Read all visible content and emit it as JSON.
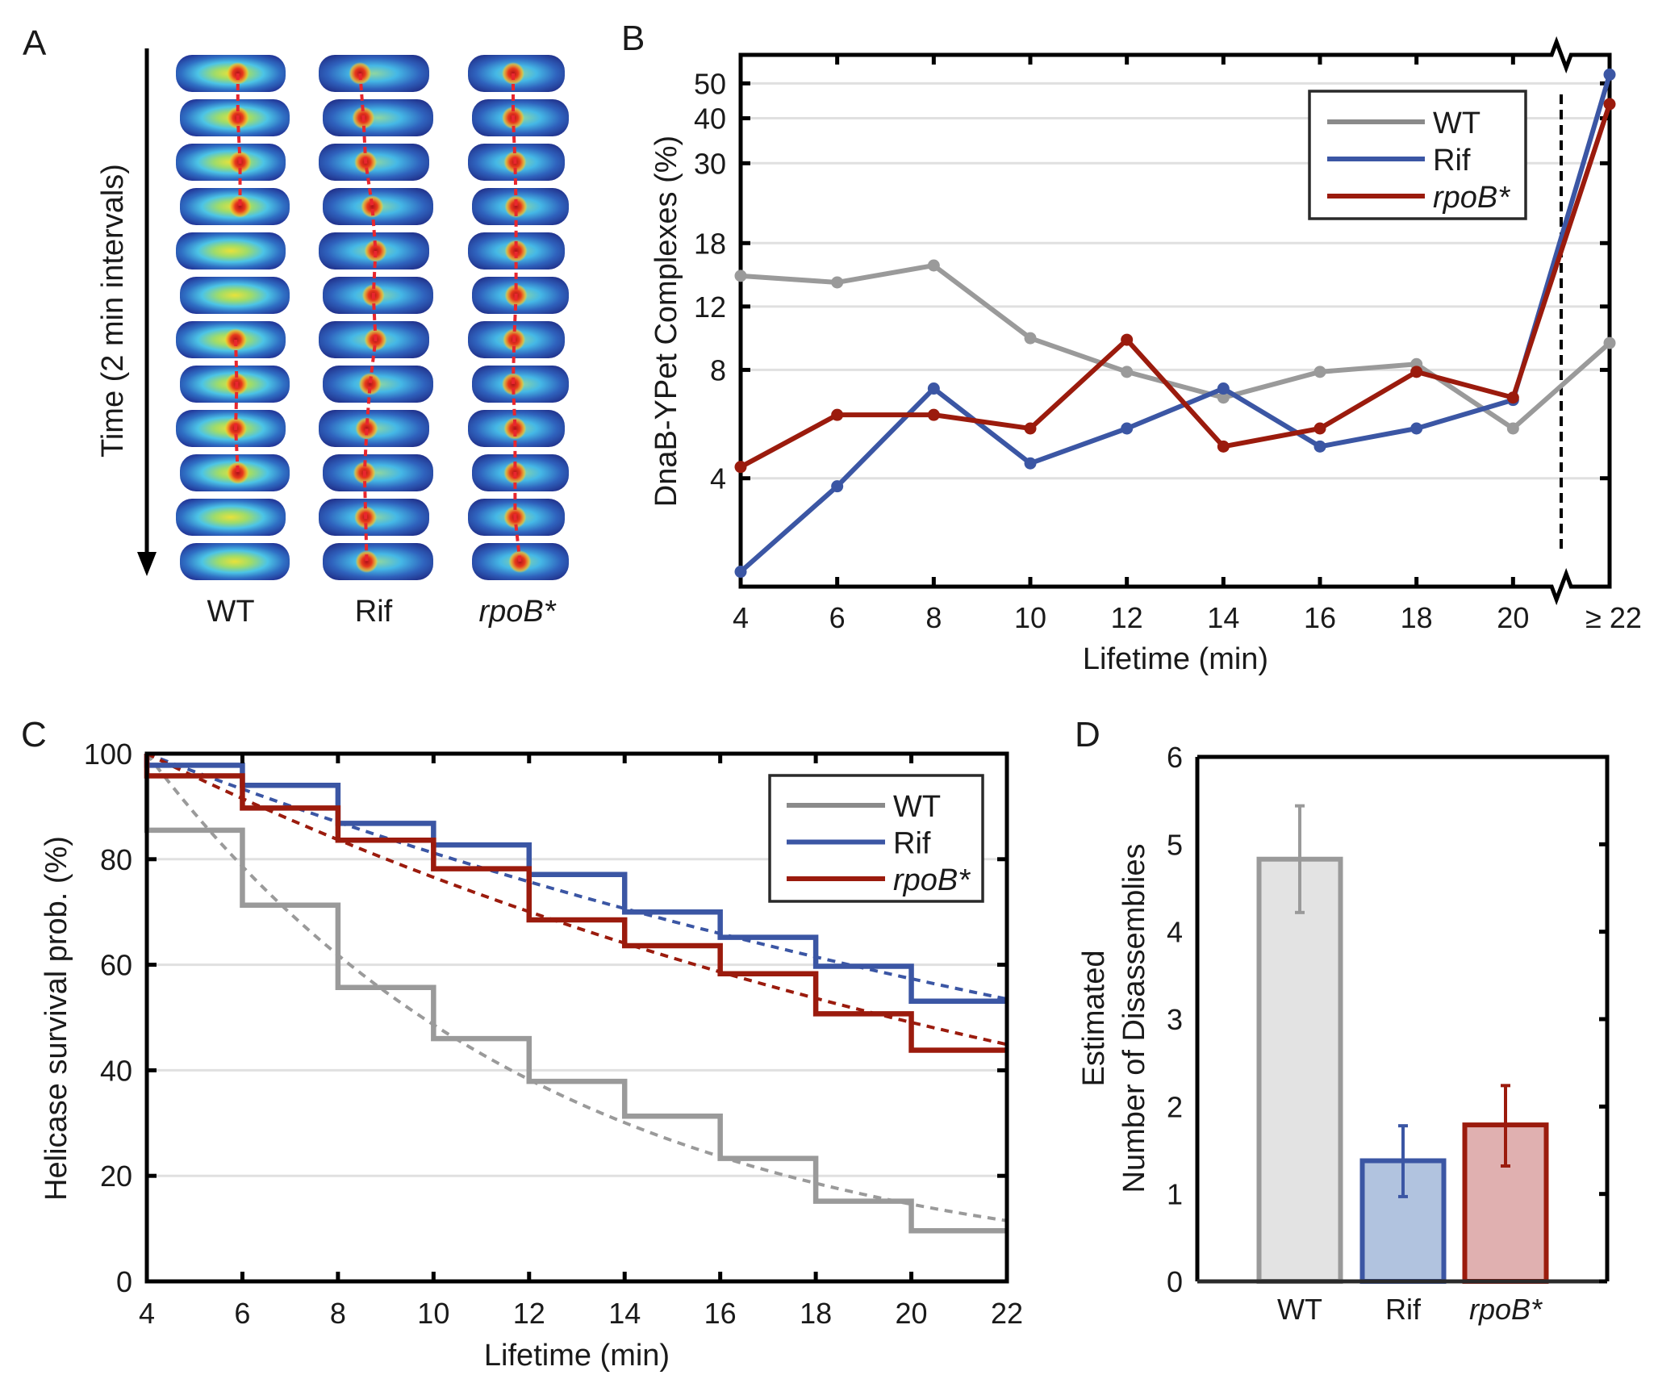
{
  "figure": {
    "panel_labels": [
      "A",
      "B",
      "C",
      "D"
    ]
  },
  "panel_a": {
    "ylabel": "Time (2 min intervals)",
    "columns": [
      "WT",
      "Rif",
      "rpoB*"
    ],
    "frames_per_column": 12
  },
  "chart_data": [
    {
      "id": "B",
      "type": "line",
      "title": "",
      "xlabel": "Lifetime (min)",
      "ylabel": "DnaB-YPet Complexes (%)",
      "yscale": "log",
      "ylim": [
        2,
        60
      ],
      "yticks": [
        4,
        8,
        12,
        18,
        30,
        40,
        50
      ],
      "ytick_labels": [
        "4",
        "8",
        "12",
        "18",
        "30",
        "40",
        "50"
      ],
      "categories": [
        "4",
        "6",
        "8",
        "10",
        "12",
        "14",
        "16",
        "18",
        "20",
        "≥ 22"
      ],
      "axis_break": "between 20 and ≥ 22",
      "grid": true,
      "legend_position": "top-right",
      "series": [
        {
          "name": "WT",
          "color": "#9a9a9a",
          "legend_color": "#8a8a8a",
          "values": [
            14.6,
            14.0,
            15.6,
            9.8,
            7.9,
            6.7,
            7.9,
            8.3,
            5.5,
            9.5
          ]
        },
        {
          "name": "Rif",
          "color": "#3b56a4",
          "values": [
            2.2,
            3.8,
            7.1,
            4.4,
            5.5,
            7.1,
            4.9,
            5.5,
            6.6,
            52.9
          ]
        },
        {
          "name": "rpoB*",
          "italic": true,
          "color": "#9b1b0d",
          "values": [
            4.3,
            6.0,
            6.0,
            5.5,
            9.7,
            4.9,
            5.5,
            7.9,
            6.7,
            43.8
          ]
        }
      ]
    },
    {
      "id": "C",
      "type": "line",
      "subtype": "step survival with exponential fit",
      "title": "",
      "xlabel": "Lifetime (min)",
      "ylabel": "Helicase survival prob. (%)",
      "xlim": [
        4,
        22
      ],
      "ylim": [
        0,
        100
      ],
      "xticks": [
        4,
        6,
        8,
        10,
        12,
        14,
        16,
        18,
        20,
        22
      ],
      "yticks": [
        0,
        20,
        40,
        60,
        80,
        100
      ],
      "grid": true,
      "legend_position": "top-right",
      "step_edges": [
        4,
        6,
        8,
        10,
        12,
        14,
        16,
        18,
        20,
        22
      ],
      "series": [
        {
          "name": "WT",
          "color": "#9a9a9a",
          "legend_color": "#8a8a8a",
          "start": 100,
          "steps": [
            85.5,
            71.3,
            55.7,
            46.0,
            37.9,
            31.3,
            23.3,
            15.2,
            9.6
          ],
          "fit": [
            100,
            78.7,
            61.9,
            48.7,
            38.3,
            30.1,
            23.7,
            18.7,
            14.7,
            11.5
          ]
        },
        {
          "name": "Rif",
          "color": "#3b56a4",
          "start": 100,
          "steps": [
            97.8,
            94.0,
            86.8,
            82.7,
            77.1,
            70.0,
            65.2,
            59.7,
            53.1
          ],
          "fit": [
            100,
            93.3,
            87.0,
            81.2,
            75.7,
            70.6,
            65.9,
            61.5,
            57.3,
            53.5
          ]
        },
        {
          "name": "rpoB*",
          "italic": true,
          "color": "#9b1b0d",
          "start": 100,
          "steps": [
            95.8,
            89.7,
            83.6,
            78.2,
            68.5,
            63.6,
            58.3,
            50.7,
            43.8
          ],
          "fit": [
            100,
            91.5,
            83.7,
            76.6,
            70.1,
            64.1,
            58.7,
            53.7,
            49.1,
            44.9
          ]
        }
      ]
    },
    {
      "id": "D",
      "type": "bar",
      "title": "",
      "xlabel": "",
      "ylabel_lines": [
        "Estimated",
        "Number of Disassemblies"
      ],
      "ylim": [
        0,
        6
      ],
      "yticks": [
        0,
        1,
        2,
        3,
        4,
        5,
        6
      ],
      "grid": false,
      "categories": [
        "WT",
        "Rif",
        "rpoB*"
      ],
      "values": [
        4.83,
        1.38,
        1.79
      ],
      "error_low": [
        4.22,
        0.97,
        1.32
      ],
      "error_high": [
        5.44,
        1.78,
        2.24
      ],
      "edge_colors": [
        "#9a9a9a",
        "#3b56a4",
        "#9b1b0d"
      ],
      "fill_colors": [
        "#e3e3e3",
        "#b1c3df",
        "#e0b0b0"
      ]
    }
  ]
}
